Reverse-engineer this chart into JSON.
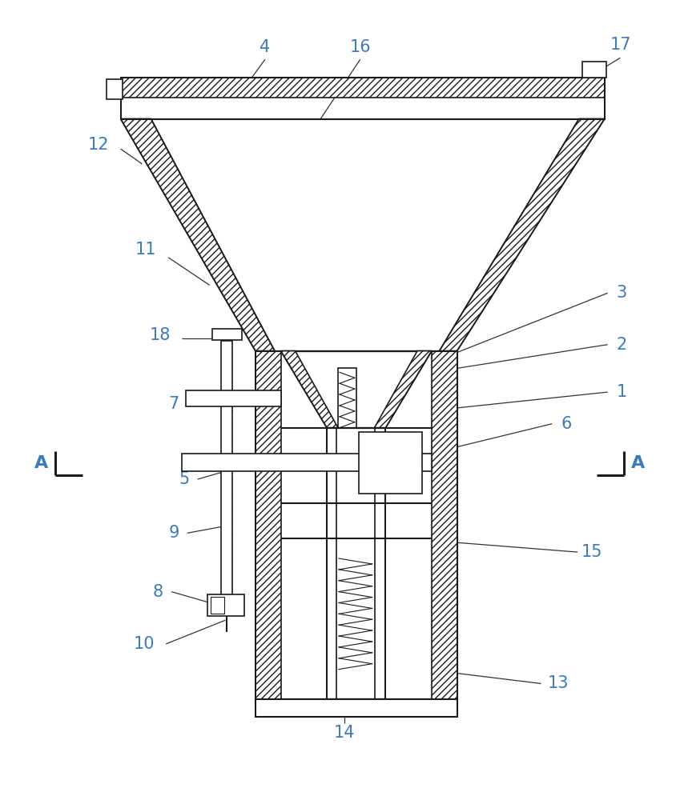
{
  "bg_color": "#ffffff",
  "line_color": "#1a1a1a",
  "label_color": "#3a7abf",
  "figsize": [
    8.44,
    10.0
  ],
  "dpi": 100
}
